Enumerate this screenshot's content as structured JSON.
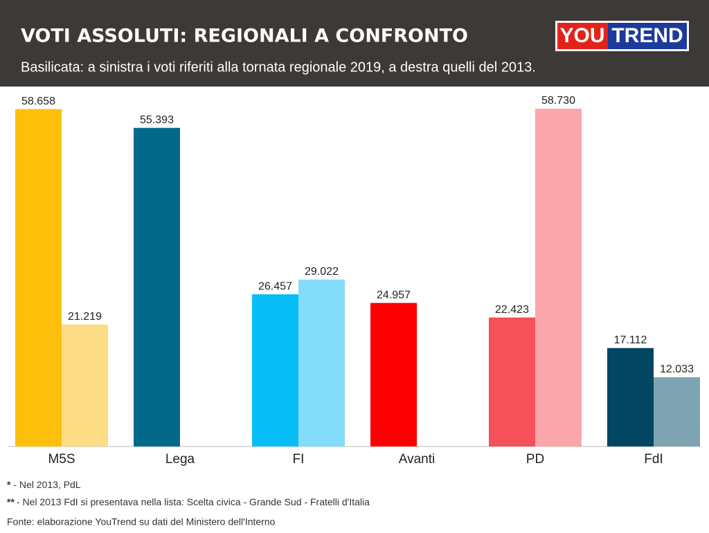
{
  "chart_data": {
    "type": "bar",
    "title": "VOTI ASSOLUTI: REGIONALI A CONFRONTO",
    "subtitle": "Basilicata: a sinistra i voti riferiti alla tornata regionale 2019, a destra quelli del 2013.",
    "logo": [
      "YOU",
      "TREND"
    ],
    "categories": [
      "M5S",
      "Lega",
      "FI",
      "Avanti",
      "PD",
      "FdI"
    ],
    "series": [
      {
        "colors": [
          "#fcbf0a",
          "#03698a",
          "#06bef5",
          "#fa0000",
          "#f65058",
          "#034661"
        ],
        "values": [
          58658,
          55393,
          26457,
          24957,
          22423,
          17112
        ],
        "value_labels": [
          "58.658",
          "55.393",
          "26.457",
          "24.957",
          "22.423",
          "17.112"
        ]
      },
      {
        "colors": [
          "#fddc86",
          null,
          "#84dcfb",
          null,
          "#fba6aa",
          "#7fa4b1"
        ],
        "values": [
          21219,
          null,
          29022,
          null,
          58730,
          12033
        ],
        "value_labels": [
          "21.219",
          null,
          "29.022",
          null,
          "58.730",
          "12.033"
        ]
      }
    ],
    "footnotes": [
      {
        "mark": "*",
        "text": " - Nel 2013, PdL"
      },
      {
        "mark": "**",
        "text": "- Nel 2013 FdI si presentava nella lista: Scelta civica - Grande Sud - Fratelli d'Italia"
      }
    ],
    "source": "Fonte: elaborazione YouTrend su dati del Ministero dell'Interno"
  }
}
